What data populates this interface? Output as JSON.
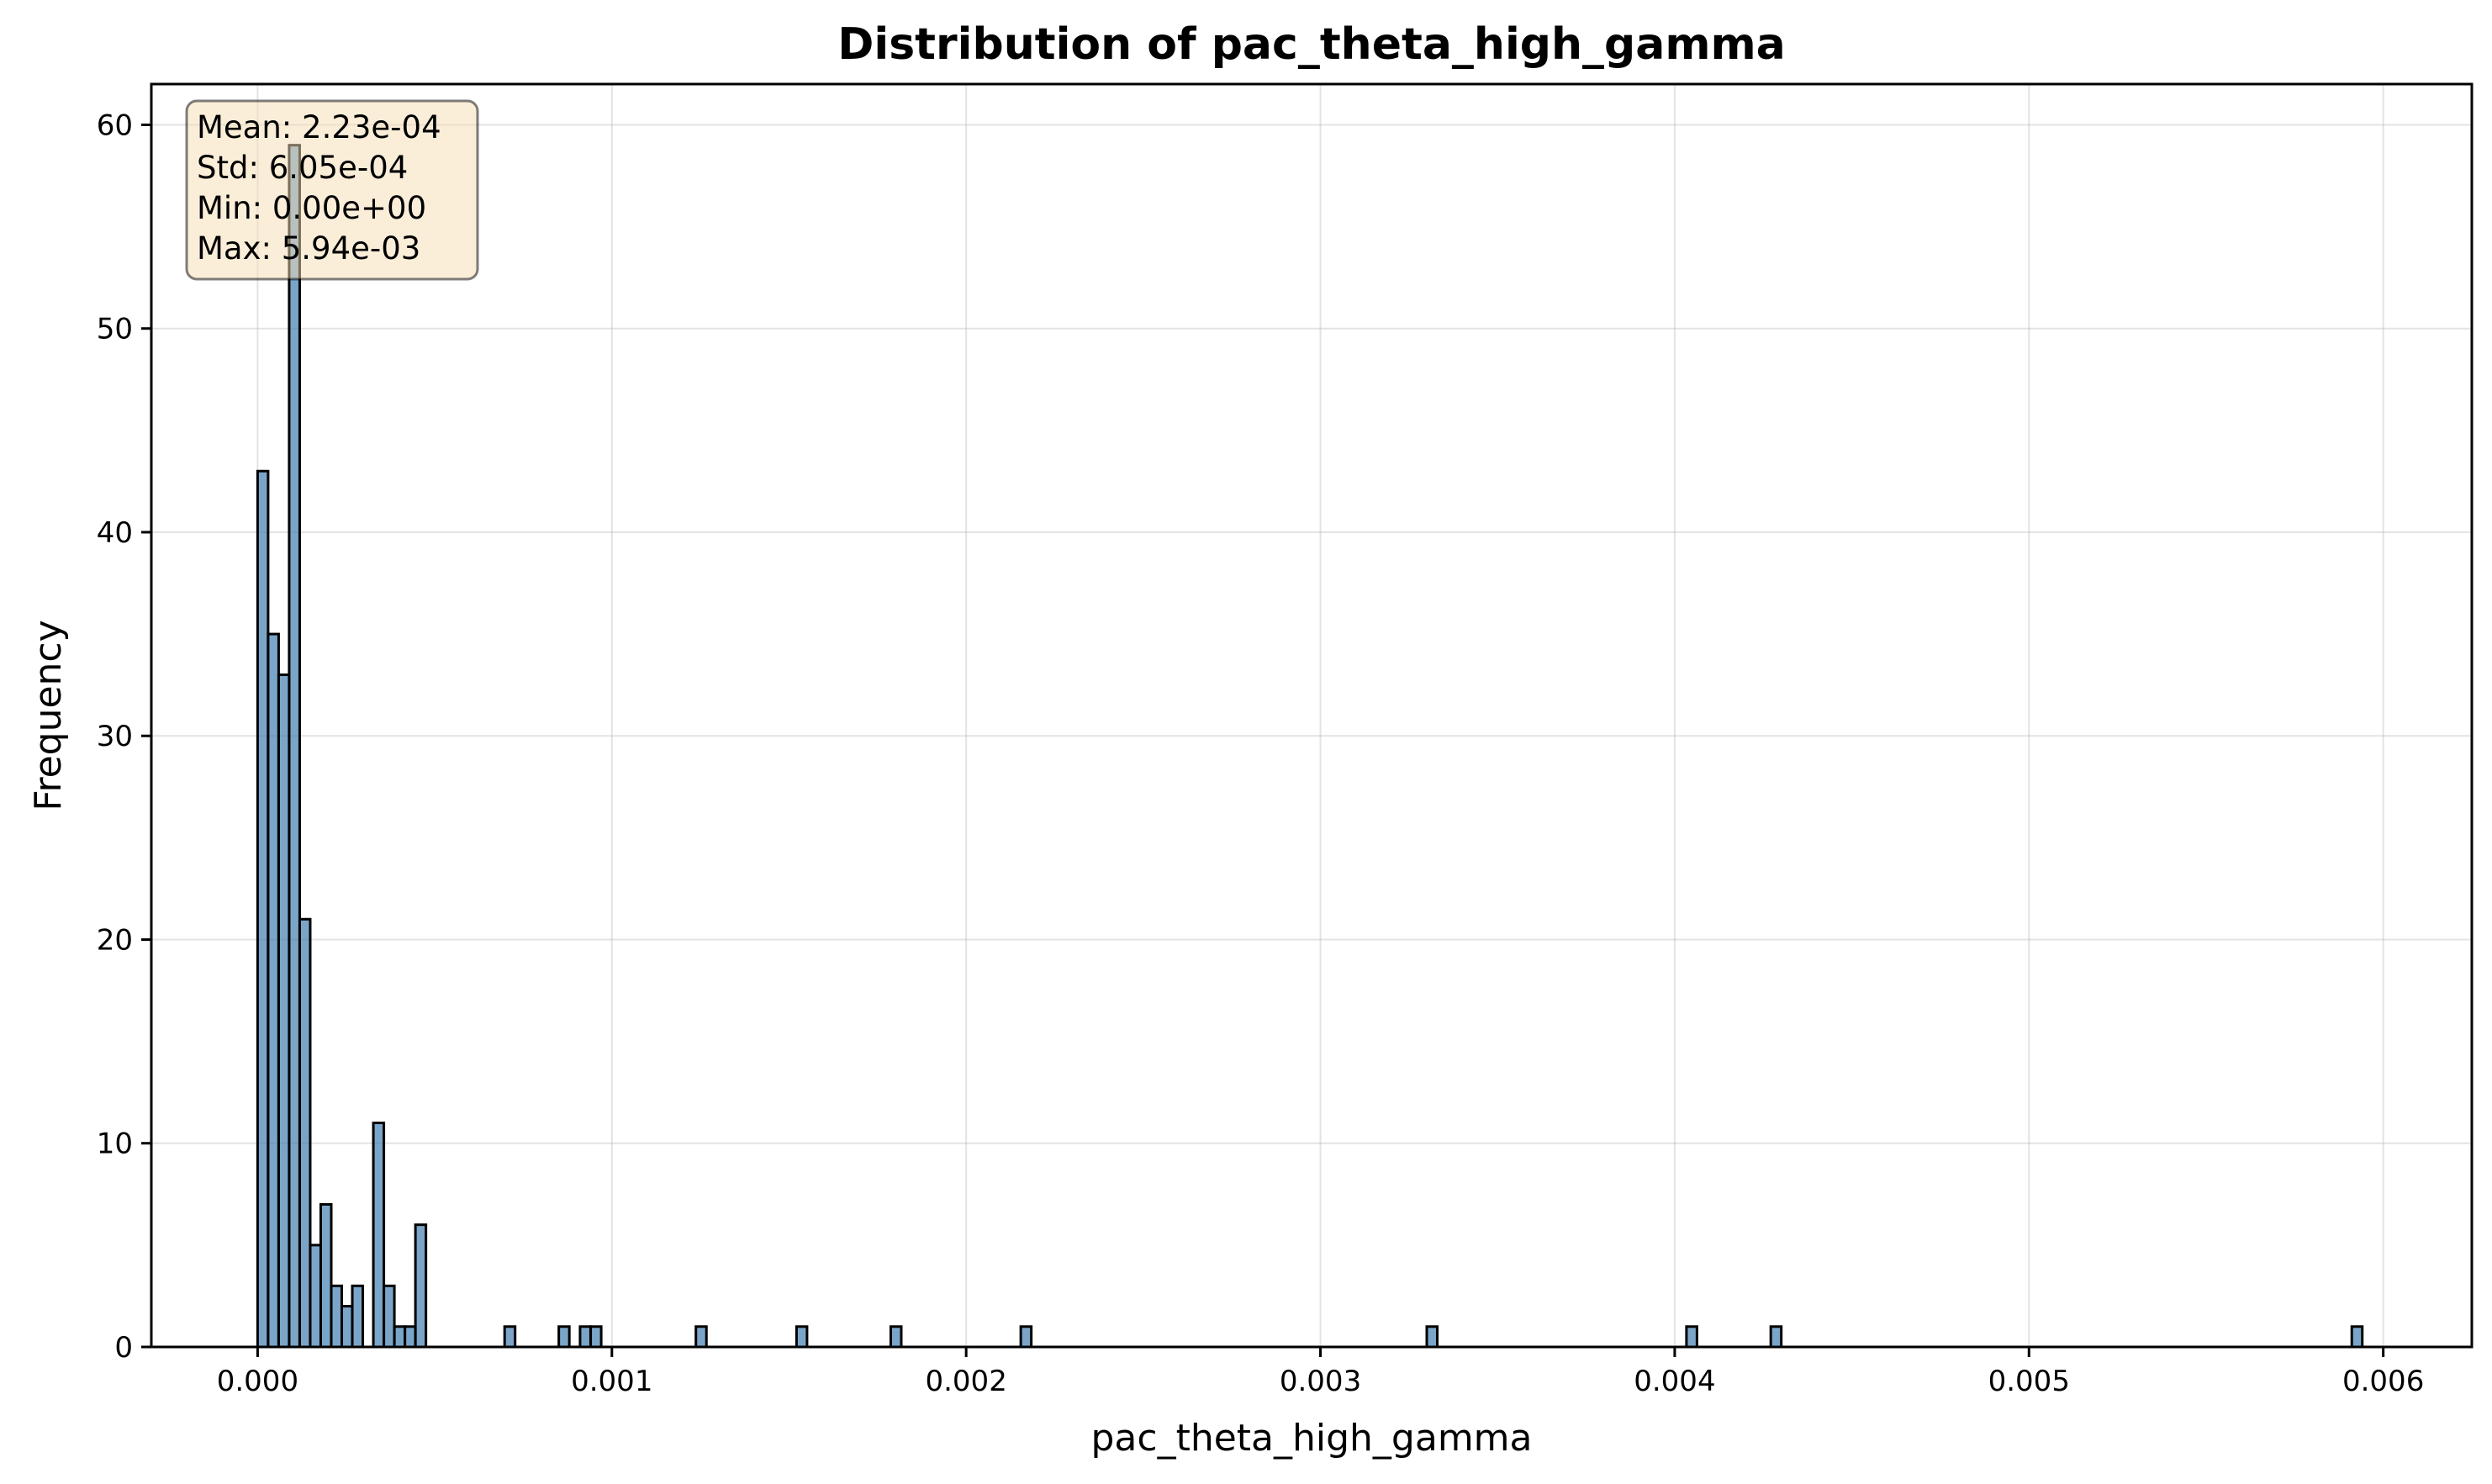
{
  "chart_data": {
    "type": "bar",
    "title": "Distribution of pac_theta_high_gamma",
    "xlabel": "pac_theta_high_gamma",
    "ylabel": "Frequency",
    "xlim": [
      -0.0003,
      0.00625
    ],
    "ylim": [
      0,
      62
    ],
    "xticks": [
      "0.000",
      "0.001",
      "0.002",
      "0.003",
      "0.004",
      "0.005",
      "0.006"
    ],
    "yticks": [
      "0",
      "10",
      "20",
      "30",
      "40",
      "50",
      "60"
    ],
    "grid": true,
    "bin_width": 2.97e-05,
    "bars": [
      {
        "x": 1.48e-05,
        "count": 43
      },
      {
        "x": 4.45e-05,
        "count": 35
      },
      {
        "x": 7.42e-05,
        "count": 33
      },
      {
        "x": 0.0001039,
        "count": 59
      },
      {
        "x": 0.0001336,
        "count": 21
      },
      {
        "x": 0.0001633,
        "count": 5
      },
      {
        "x": 0.000193,
        "count": 7
      },
      {
        "x": 0.0002227,
        "count": 3
      },
      {
        "x": 0.0002524,
        "count": 2
      },
      {
        "x": 0.0002821,
        "count": 3
      },
      {
        "x": 0.0003415,
        "count": 11
      },
      {
        "x": 0.0003712,
        "count": 3
      },
      {
        "x": 0.0004009,
        "count": 1
      },
      {
        "x": 0.0004306,
        "count": 1
      },
      {
        "x": 0.0004603,
        "count": 6
      },
      {
        "x": 0.000712,
        "count": 1
      },
      {
        "x": 0.000865,
        "count": 1
      },
      {
        "x": 0.000925,
        "count": 1
      },
      {
        "x": 0.000955,
        "count": 1
      },
      {
        "x": 0.001252,
        "count": 1
      },
      {
        "x": 0.001536,
        "count": 1
      },
      {
        "x": 0.001802,
        "count": 1
      },
      {
        "x": 0.002169,
        "count": 1
      },
      {
        "x": 0.003315,
        "count": 1
      },
      {
        "x": 0.004048,
        "count": 1
      },
      {
        "x": 0.004286,
        "count": 1
      },
      {
        "x": 0.005926,
        "count": 1
      }
    ],
    "annotations": {
      "stats_box": [
        "Mean: 2.23e-04",
        "Std: 6.05e-04",
        "Min: 0.00e+00",
        "Max: 5.94e-03"
      ],
      "placement": "top-left",
      "box_fill": "#f5deb3",
      "box_stroke": "#000000"
    },
    "colors": {
      "bar_fill": "#4682b4",
      "bar_edge": "#000000"
    }
  }
}
